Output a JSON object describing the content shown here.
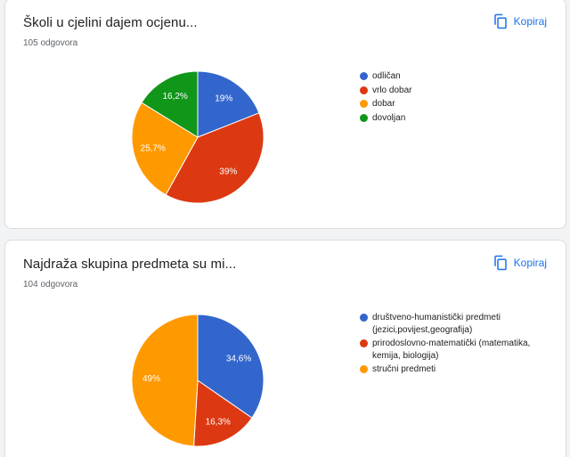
{
  "copy_label": "Kopiraj",
  "charts": [
    {
      "title": "Školi u cjelini dajem ocjenu...",
      "responses": "105 odgovora",
      "chart_data": {
        "type": "pie",
        "categories": [
          "odličan",
          "vrlo dobar",
          "dobar",
          "dovoljan"
        ],
        "values": [
          19,
          39,
          25.7,
          16.2
        ],
        "value_labels": [
          "19%",
          "39%",
          "25,7%",
          "16,2%"
        ],
        "colors": [
          "#3366cc",
          "#dc3912",
          "#ff9900",
          "#109618"
        ],
        "start_angle_deg": 90,
        "direction": "clockwise",
        "legend_position": "right"
      }
    },
    {
      "title": "Najdraža skupina predmeta su mi...",
      "responses": "104 odgovora",
      "chart_data": {
        "type": "pie",
        "categories": [
          "društveno-humanistički predmeti (jezici,povijest,geografija)",
          "prirodoslovno-matematički (matematika, kemija, biologija)",
          "stručni predmeti"
        ],
        "values": [
          34.6,
          16.3,
          49
        ],
        "value_labels": [
          "34,6%",
          "16,3%",
          "49%"
        ],
        "colors": [
          "#3366cc",
          "#dc3912",
          "#ff9900"
        ],
        "start_angle_deg": 90,
        "direction": "clockwise",
        "legend_position": "right"
      }
    }
  ]
}
